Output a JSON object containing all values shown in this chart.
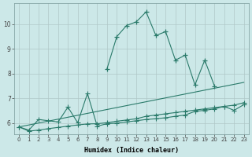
{
  "xlabel": "Humidex (Indice chaleur)",
  "bg_color": "#cce8e8",
  "grid_color": "#b0c8c8",
  "line_color": "#2a7a6a",
  "x_ticks": [
    0,
    1,
    2,
    3,
    4,
    5,
    6,
    7,
    8,
    9,
    10,
    11,
    12,
    13,
    14,
    15,
    16,
    17,
    18,
    19,
    20,
    21,
    22,
    23
  ],
  "y_ticks": [
    6,
    7,
    8,
    9,
    10
  ],
  "ylim": [
    5.55,
    10.85
  ],
  "xlim": [
    -0.5,
    23.5
  ],
  "line1_x": [
    0,
    1,
    2,
    3,
    4,
    5,
    6,
    7,
    8,
    9,
    10,
    11,
    12,
    13,
    14,
    15,
    16,
    17,
    18,
    19,
    20,
    21,
    22,
    23
  ],
  "line1_y": [
    5.85,
    5.72,
    6.15,
    6.1,
    6.05,
    6.65,
    6.02,
    7.2,
    5.88,
    5.98,
    6.0,
    6.05,
    6.1,
    6.15,
    6.18,
    6.22,
    6.28,
    6.33,
    6.48,
    6.52,
    6.58,
    6.68,
    6.52,
    6.75
  ],
  "line2_x": [
    0,
    1,
    2,
    3,
    4,
    5,
    6,
    7,
    8,
    9,
    10,
    11,
    12,
    13,
    14,
    15,
    16,
    17,
    18,
    19,
    20,
    21,
    22,
    23
  ],
  "line2_y": [
    5.85,
    5.68,
    5.72,
    5.78,
    5.83,
    5.88,
    5.93,
    5.97,
    5.98,
    6.02,
    6.08,
    6.13,
    6.18,
    6.28,
    6.33,
    6.38,
    6.43,
    6.48,
    6.53,
    6.58,
    6.63,
    6.68,
    6.73,
    6.83
  ],
  "line3_x": [
    0,
    23
  ],
  "line3_y": [
    5.85,
    7.65
  ],
  "line4_x": [
    9,
    10,
    11,
    12,
    13,
    14,
    15,
    16,
    17,
    18,
    19,
    20
  ],
  "line4_y": [
    8.2,
    9.5,
    9.95,
    10.1,
    10.5,
    9.55,
    9.7,
    8.55,
    8.75,
    7.55,
    8.55,
    7.5
  ],
  "marker_size": 2.5,
  "linewidth": 0.8,
  "tick_fontsize": 5.0,
  "xlabel_fontsize": 6.0
}
